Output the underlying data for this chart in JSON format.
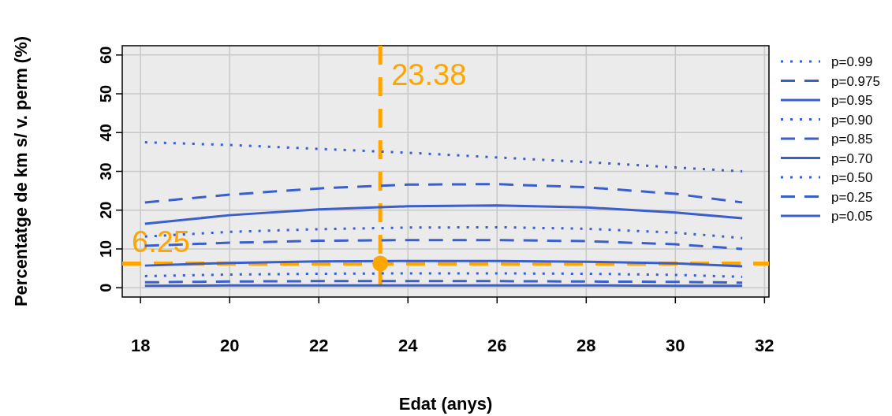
{
  "chart_data": {
    "type": "line",
    "xlabel": "Edat (anys)",
    "ylabel": "Percentatge de km s/ v. perm (%)",
    "xlim": [
      17.59,
      32.1
    ],
    "ylim": [
      -2.4,
      62.4
    ],
    "xticks": [
      18,
      20,
      22,
      24,
      26,
      28,
      30,
      32
    ],
    "yticks": [
      0,
      10,
      20,
      30,
      40,
      50,
      60
    ],
    "grid": true,
    "legend": "right",
    "series": [
      {
        "name": "p=0.99",
        "color": "#3a5fcd",
        "line_style": "dotted",
        "x": [
          18.1,
          20,
          22,
          24,
          26,
          28,
          30,
          31.5
        ],
        "values": [
          37.5,
          36.8,
          35.8,
          34.8,
          33.6,
          32.4,
          31,
          30
        ]
      },
      {
        "name": "p=0.975",
        "color": "#3a5fcd",
        "line_style": "dashed",
        "x": [
          18.1,
          20,
          22,
          24,
          26,
          28,
          30,
          31.5
        ],
        "values": [
          22,
          24,
          25.6,
          26.6,
          26.7,
          25.9,
          24.2,
          22
        ]
      },
      {
        "name": "p=0.95",
        "color": "#3a5fcd",
        "line_style": "solid",
        "x": [
          18.1,
          20,
          22,
          24,
          26,
          28,
          30,
          31.5
        ],
        "values": [
          16.5,
          18.7,
          20.2,
          21,
          21.2,
          20.7,
          19.4,
          17.9
        ]
      },
      {
        "name": "p=0.90",
        "color": "#3a5fcd",
        "line_style": "dotted",
        "x": [
          18.1,
          20,
          22,
          24,
          26,
          28,
          30,
          31.5
        ],
        "values": [
          13.2,
          14.4,
          15.1,
          15.5,
          15.6,
          15.2,
          14.2,
          12.8
        ]
      },
      {
        "name": "p=0.85",
        "color": "#3a5fcd",
        "line_style": "dashed",
        "x": [
          18.1,
          20,
          22,
          24,
          26,
          28,
          30,
          31.5
        ],
        "values": [
          10.8,
          11.6,
          12.1,
          12.3,
          12.3,
          12,
          11.2,
          10
        ]
      },
      {
        "name": "p=0.70",
        "color": "#3a5fcd",
        "line_style": "solid",
        "x": [
          18.1,
          20,
          22,
          24,
          26,
          28,
          30,
          31.5
        ],
        "values": [
          5.7,
          6.4,
          6.8,
          6.9,
          6.9,
          6.7,
          6.3,
          5.5
        ]
      },
      {
        "name": "p=0.50",
        "color": "#3a5fcd",
        "line_style": "dotted",
        "x": [
          18.1,
          20,
          22,
          24,
          26,
          28,
          30,
          31.5
        ],
        "values": [
          3,
          3.4,
          3.6,
          3.7,
          3.7,
          3.6,
          3.3,
          2.8
        ]
      },
      {
        "name": "p=0.25",
        "color": "#3a5fcd",
        "line_style": "dashed",
        "x": [
          18.1,
          20,
          22,
          24,
          26,
          28,
          30,
          31.5
        ],
        "values": [
          1.4,
          1.6,
          1.7,
          1.7,
          1.7,
          1.6,
          1.5,
          1.3
        ]
      },
      {
        "name": "p=0.05",
        "color": "#3a5fcd",
        "line_style": "solid",
        "x": [
          18.1,
          20,
          22,
          24,
          26,
          28,
          30,
          31.5
        ],
        "values": [
          0.5,
          0.6,
          0.6,
          0.6,
          0.6,
          0.6,
          0.5,
          0.5
        ]
      },
      {
        "type": "scatter",
        "color": "#ffa500",
        "marker": "circle",
        "x": [
          23.38
        ],
        "values": [
          6.25
        ]
      }
    ],
    "ref_lines": [
      {
        "axis": "x",
        "value": 23.38,
        "label": "23.38",
        "color": "#ffa500",
        "line_style": "dashed"
      },
      {
        "axis": "y",
        "value": 6.25,
        "label": "6.25",
        "color": "#ffa500",
        "line_style": "dashed"
      }
    ]
  }
}
